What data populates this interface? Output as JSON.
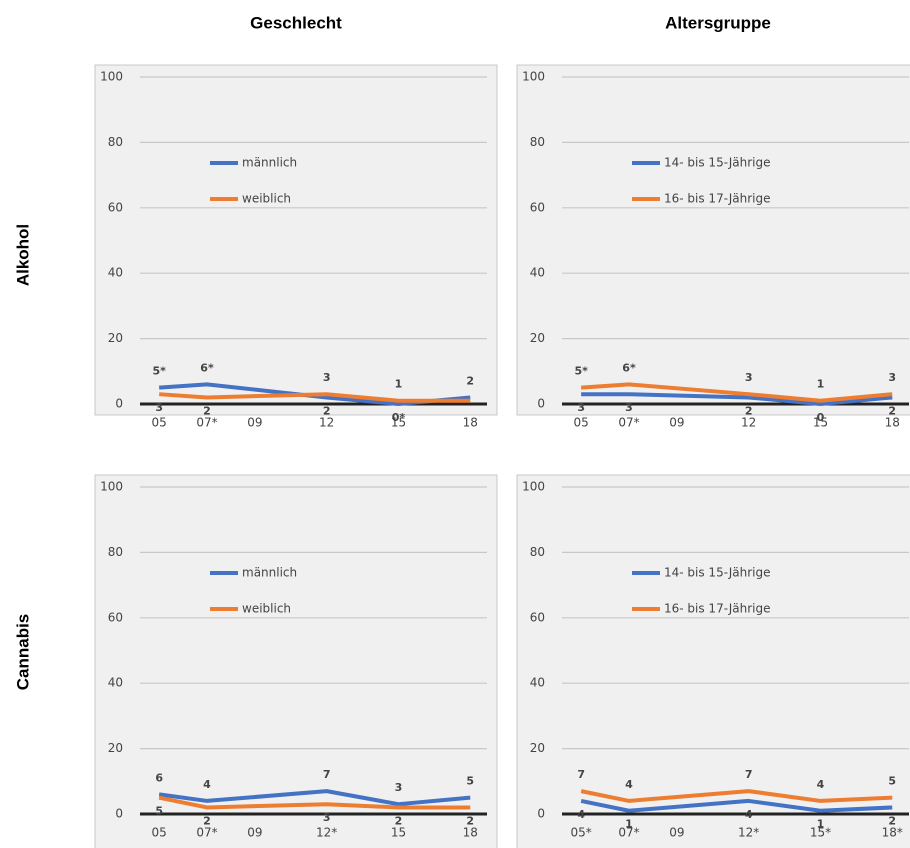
{
  "column_titles": [
    "Geschlecht",
    "Altersgruppe"
  ],
  "row_titles": [
    "Alkohol",
    "Cannabis"
  ],
  "chart_data": [
    {
      "type": "line",
      "x": [
        5,
        7,
        12,
        15,
        18
      ],
      "xlim": [
        4.2,
        18.7
      ],
      "xticks": [
        {
          "value": 5,
          "label": "05"
        },
        {
          "value": 7,
          "label": "07*"
        },
        {
          "value": 9,
          "label": "09"
        },
        {
          "value": 12,
          "label": "12"
        },
        {
          "value": 15,
          "label": "15"
        },
        {
          "value": 18,
          "label": "18"
        }
      ],
      "ylim": [
        0,
        100
      ],
      "yticks": [
        0,
        20,
        40,
        60,
        80,
        100
      ],
      "grid": true,
      "series": [
        {
          "name": "männlich",
          "color": "#4472c4",
          "values": [
            5,
            6,
            2,
            0,
            2
          ],
          "value_labels": [
            "5*",
            "6*",
            "2",
            "0*",
            "2"
          ]
        },
        {
          "name": "weiblich",
          "color": "#ed7d31",
          "values": [
            3,
            2,
            3,
            1,
            1
          ],
          "value_labels": [
            "3",
            "2",
            "3",
            "1",
            null
          ]
        }
      ]
    },
    {
      "type": "line",
      "x": [
        5,
        7,
        12,
        15,
        18
      ],
      "xlim": [
        4.2,
        18.7
      ],
      "xticks": [
        {
          "value": 5,
          "label": "05"
        },
        {
          "value": 7,
          "label": "07*"
        },
        {
          "value": 9,
          "label": "09"
        },
        {
          "value": 12,
          "label": "12"
        },
        {
          "value": 15,
          "label": "15"
        },
        {
          "value": 18,
          "label": "18"
        }
      ],
      "ylim": [
        0,
        100
      ],
      "yticks": [
        0,
        20,
        40,
        60,
        80,
        100
      ],
      "grid": true,
      "series": [
        {
          "name": "14- bis 15-Jährige",
          "color": "#4472c4",
          "values": [
            3,
            3,
            2,
            0,
            2
          ]
        },
        {
          "name": "16- bis 17-Jährige",
          "color": "#ed7d31",
          "values": [
            5,
            6,
            3,
            1,
            3
          ],
          "value_labels": [
            "5*",
            "6*",
            "3",
            "1",
            "3"
          ]
        }
      ]
    },
    {
      "type": "line",
      "x": [
        5,
        7,
        12,
        15,
        18
      ],
      "xlim": [
        4.2,
        18.7
      ],
      "xticks": [
        {
          "value": 5,
          "label": "05"
        },
        {
          "value": 7,
          "label": "07*"
        },
        {
          "value": 9,
          "label": "09"
        },
        {
          "value": 12,
          "label": "12*"
        },
        {
          "value": 15,
          "label": "15"
        },
        {
          "value": 18,
          "label": "18"
        }
      ],
      "ylim": [
        0,
        100
      ],
      "yticks": [
        0,
        20,
        40,
        60,
        80,
        100
      ],
      "grid": true,
      "series": [
        {
          "name": "männlich",
          "color": "#4472c4",
          "values": [
            6,
            4,
            7,
            3,
            5
          ]
        },
        {
          "name": "weiblich",
          "color": "#ed7d31",
          "values": [
            5,
            2,
            3,
            2,
            2
          ]
        }
      ]
    },
    {
      "type": "line",
      "x": [
        5,
        7,
        12,
        15,
        18
      ],
      "xlim": [
        4.2,
        18.7
      ],
      "xticks": [
        {
          "value": 5,
          "label": "05*"
        },
        {
          "value": 7,
          "label": "07*"
        },
        {
          "value": 9,
          "label": "09"
        },
        {
          "value": 12,
          "label": "12*"
        },
        {
          "value": 15,
          "label": "15*"
        },
        {
          "value": 18,
          "label": "18*"
        }
      ],
      "ylim": [
        0,
        100
      ],
      "yticks": [
        0,
        20,
        40,
        60,
        80,
        100
      ],
      "grid": true,
      "series": [
        {
          "name": "14- bis 15-Jährige",
          "color": "#4472c4",
          "values": [
            4,
            1,
            4,
            1,
            2
          ]
        },
        {
          "name": "16- bis 17-Jährige",
          "color": "#ed7d31",
          "values": [
            7,
            4,
            7,
            4,
            5
          ]
        }
      ]
    }
  ]
}
